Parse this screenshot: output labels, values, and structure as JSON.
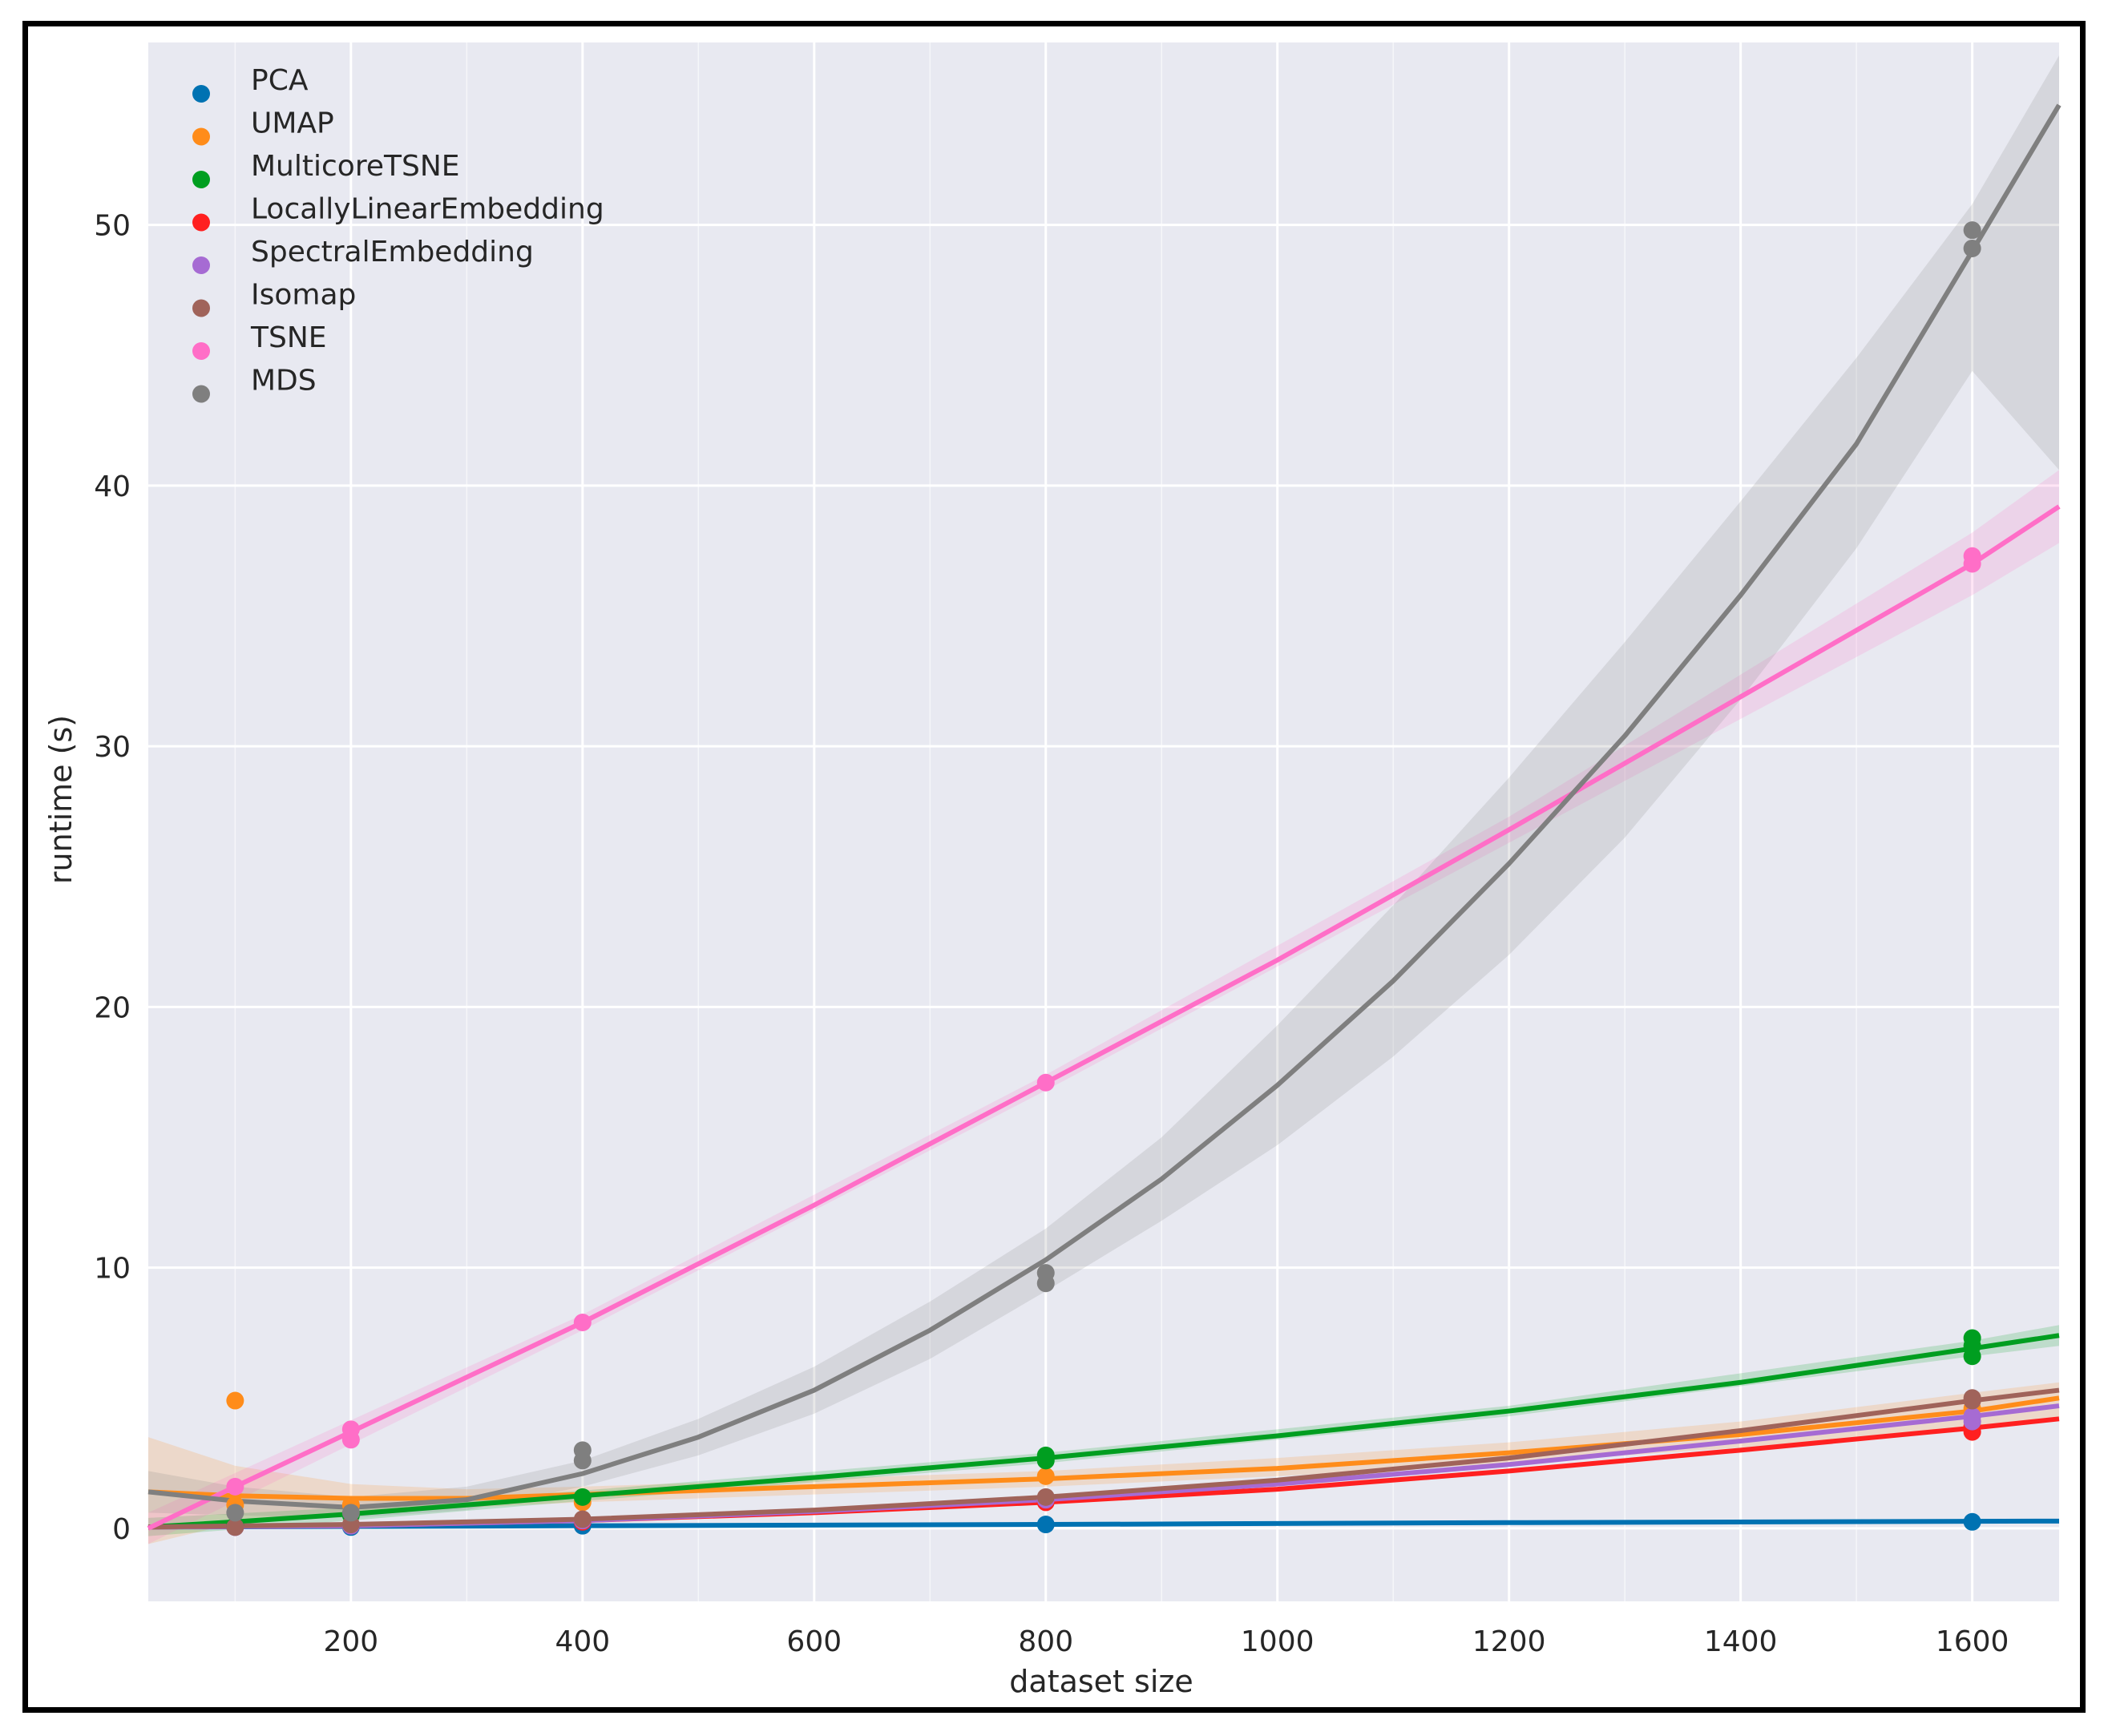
{
  "chart_data": {
    "type": "scatter",
    "xlabel": "dataset size",
    "ylabel": "runtime (s)",
    "xlim": [
      25,
      1675
    ],
    "ylim": [
      -2.8,
      57
    ],
    "xticks": [
      200,
      400,
      600,
      800,
      1000,
      1200,
      1400,
      1600
    ],
    "yticks": [
      0,
      10,
      20,
      30,
      40,
      50
    ],
    "legend_position": "top-left",
    "grid": true,
    "series": [
      {
        "name": "PCA",
        "color": "#0072B2",
        "points": [
          [
            100,
            0.05
          ],
          [
            200,
            0.05
          ],
          [
            400,
            0.1
          ],
          [
            800,
            0.15
          ],
          [
            1600,
            0.25
          ]
        ],
        "fit": [
          [
            25,
            0.05
          ],
          [
            400,
            0.1
          ],
          [
            800,
            0.15
          ],
          [
            1200,
            0.22
          ],
          [
            1675,
            0.28
          ]
        ],
        "band": []
      },
      {
        "name": "UMAP",
        "color": "#FF8C1A",
        "points": [
          [
            100,
            4.9
          ],
          [
            100,
            0.9
          ],
          [
            200,
            0.9
          ],
          [
            400,
            1.0
          ],
          [
            800,
            2.0
          ],
          [
            1600,
            4.6
          ]
        ],
        "fit": [
          [
            25,
            1.4
          ],
          [
            100,
            1.25
          ],
          [
            200,
            1.15
          ],
          [
            300,
            1.15
          ],
          [
            400,
            1.3
          ],
          [
            600,
            1.6
          ],
          [
            800,
            1.9
          ],
          [
            1000,
            2.3
          ],
          [
            1200,
            2.9
          ],
          [
            1400,
            3.6
          ],
          [
            1600,
            4.5
          ],
          [
            1675,
            5.0
          ]
        ],
        "band": [
          [
            25,
            3.5,
            -0.6
          ],
          [
            100,
            2.4,
            0.2
          ],
          [
            200,
            1.7,
            0.6
          ],
          [
            300,
            1.5,
            0.8
          ],
          [
            400,
            1.6,
            1.0
          ],
          [
            600,
            1.9,
            1.3
          ],
          [
            800,
            2.2,
            1.6
          ],
          [
            1000,
            2.7,
            2.0
          ],
          [
            1200,
            3.3,
            2.5
          ],
          [
            1400,
            4.1,
            3.1
          ],
          [
            1600,
            5.2,
            3.8
          ],
          [
            1675,
            5.6,
            4.2
          ]
        ]
      },
      {
        "name": "MulticoreTSNE",
        "color": "#009E20",
        "points": [
          [
            100,
            0.1
          ],
          [
            200,
            0.5
          ],
          [
            400,
            1.2
          ],
          [
            800,
            2.6
          ],
          [
            800,
            2.8
          ],
          [
            1600,
            6.6
          ],
          [
            1600,
            7.0
          ],
          [
            1600,
            7.3
          ]
        ],
        "fit": [
          [
            25,
            0.05
          ],
          [
            100,
            0.25
          ],
          [
            200,
            0.55
          ],
          [
            400,
            1.25
          ],
          [
            600,
            1.95
          ],
          [
            800,
            2.7
          ],
          [
            1000,
            3.55
          ],
          [
            1200,
            4.5
          ],
          [
            1400,
            5.6
          ],
          [
            1600,
            6.9
          ],
          [
            1675,
            7.4
          ]
        ],
        "band": [
          [
            25,
            0.4,
            -0.3
          ],
          [
            200,
            0.8,
            0.3
          ],
          [
            400,
            1.45,
            1.05
          ],
          [
            800,
            2.9,
            2.5
          ],
          [
            1200,
            4.7,
            4.3
          ],
          [
            1600,
            7.2,
            6.6
          ],
          [
            1675,
            7.8,
            7.0
          ]
        ]
      },
      {
        "name": "LocallyLinearEmbedding",
        "color": "#FF2020",
        "points": [
          [
            100,
            0.05
          ],
          [
            200,
            0.1
          ],
          [
            400,
            0.25
          ],
          [
            800,
            1.0
          ],
          [
            1600,
            3.7
          ],
          [
            1600,
            3.9
          ]
        ],
        "fit": [
          [
            25,
            0.05
          ],
          [
            200,
            0.1
          ],
          [
            400,
            0.3
          ],
          [
            600,
            0.6
          ],
          [
            800,
            1.0
          ],
          [
            1000,
            1.5
          ],
          [
            1200,
            2.2
          ],
          [
            1400,
            3.0
          ],
          [
            1600,
            3.85
          ],
          [
            1675,
            4.2
          ]
        ],
        "band": []
      },
      {
        "name": "SpectralEmbedding",
        "color": "#A66BD3",
        "points": [
          [
            100,
            0.05
          ],
          [
            200,
            0.1
          ],
          [
            400,
            0.3
          ],
          [
            800,
            1.1
          ],
          [
            1600,
            4.1
          ],
          [
            1600,
            4.3
          ]
        ],
        "fit": [
          [
            25,
            0.05
          ],
          [
            200,
            0.1
          ],
          [
            400,
            0.3
          ],
          [
            600,
            0.65
          ],
          [
            800,
            1.1
          ],
          [
            1000,
            1.7
          ],
          [
            1200,
            2.45
          ],
          [
            1400,
            3.35
          ],
          [
            1600,
            4.3
          ],
          [
            1675,
            4.7
          ]
        ],
        "band": []
      },
      {
        "name": "Isomap",
        "color": "#A0635A",
        "points": [
          [
            100,
            0.05
          ],
          [
            200,
            0.15
          ],
          [
            400,
            0.35
          ],
          [
            800,
            1.2
          ],
          [
            1600,
            4.9
          ],
          [
            1600,
            5.0
          ]
        ],
        "fit": [
          [
            25,
            0.05
          ],
          [
            200,
            0.15
          ],
          [
            400,
            0.35
          ],
          [
            600,
            0.7
          ],
          [
            800,
            1.2
          ],
          [
            1000,
            1.85
          ],
          [
            1200,
            2.7
          ],
          [
            1400,
            3.75
          ],
          [
            1600,
            4.9
          ],
          [
            1675,
            5.3
          ]
        ],
        "band": []
      },
      {
        "name": "TSNE",
        "color": "#FF6EC7",
        "points": [
          [
            100,
            1.6
          ],
          [
            200,
            3.4
          ],
          [
            200,
            3.8
          ],
          [
            400,
            7.9
          ],
          [
            800,
            17.1
          ],
          [
            1600,
            37.0
          ],
          [
            1600,
            37.3
          ]
        ],
        "fit": [
          [
            25,
            0.0
          ],
          [
            100,
            1.6
          ],
          [
            200,
            3.7
          ],
          [
            400,
            7.9
          ],
          [
            600,
            12.4
          ],
          [
            800,
            17.1
          ],
          [
            1000,
            21.8
          ],
          [
            1200,
            26.8
          ],
          [
            1400,
            31.9
          ],
          [
            1600,
            37.0
          ],
          [
            1675,
            39.2
          ]
        ],
        "band": [
          [
            25,
            0.6,
            -0.6
          ],
          [
            400,
            8.2,
            7.6
          ],
          [
            800,
            17.4,
            16.8
          ],
          [
            1200,
            27.3,
            26.3
          ],
          [
            1600,
            38.2,
            35.8
          ],
          [
            1675,
            40.6,
            37.8
          ]
        ]
      },
      {
        "name": "MDS",
        "color": "#7F7F7F",
        "points": [
          [
            100,
            0.6
          ],
          [
            200,
            0.6
          ],
          [
            400,
            2.6
          ],
          [
            400,
            3.0
          ],
          [
            800,
            9.4
          ],
          [
            800,
            9.8
          ],
          [
            1600,
            49.1
          ],
          [
            1600,
            49.8
          ]
        ],
        "fit": [
          [
            25,
            1.4
          ],
          [
            100,
            1.05
          ],
          [
            200,
            0.8
          ],
          [
            300,
            1.1
          ],
          [
            400,
            2.1
          ],
          [
            500,
            3.5
          ],
          [
            600,
            5.3
          ],
          [
            700,
            7.6
          ],
          [
            800,
            10.3
          ],
          [
            900,
            13.4
          ],
          [
            1000,
            17.0
          ],
          [
            1100,
            21.0
          ],
          [
            1200,
            25.5
          ],
          [
            1300,
            30.4
          ],
          [
            1400,
            35.8
          ],
          [
            1500,
            41.6
          ],
          [
            1600,
            49.0
          ],
          [
            1675,
            54.6
          ]
        ],
        "band": [
          [
            25,
            2.2,
            0.6
          ],
          [
            100,
            1.6,
            0.5
          ],
          [
            200,
            1.2,
            0.4
          ],
          [
            300,
            1.6,
            0.7
          ],
          [
            400,
            2.6,
            1.6
          ],
          [
            500,
            4.2,
            2.8
          ],
          [
            600,
            6.2,
            4.4
          ],
          [
            700,
            8.7,
            6.5
          ],
          [
            800,
            11.5,
            9.1
          ],
          [
            900,
            15.0,
            11.8
          ],
          [
            1000,
            19.3,
            14.7
          ],
          [
            1100,
            23.9,
            18.1
          ],
          [
            1200,
            28.8,
            22.0
          ],
          [
            1300,
            34.0,
            26.5
          ],
          [
            1400,
            39.4,
            31.8
          ],
          [
            1500,
            44.9,
            37.6
          ],
          [
            1600,
            50.8,
            44.4
          ],
          [
            1675,
            56.5,
            40.6
          ]
        ]
      }
    ]
  }
}
